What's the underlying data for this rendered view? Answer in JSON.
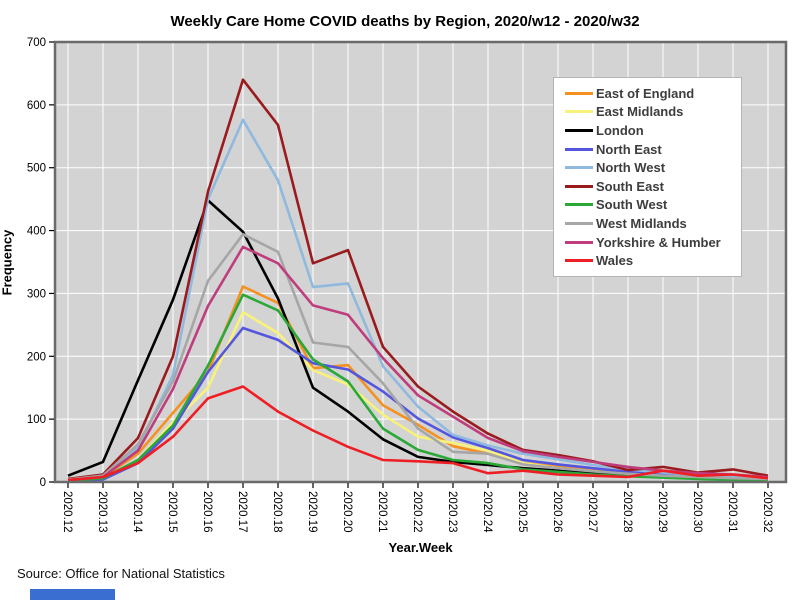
{
  "chart": {
    "title": "Weekly Care Home COVID deaths by Region, 2020/w12 - 2020/w32",
    "ylabel": "Frequency",
    "xlabel": "Year.Week",
    "source": "Source: Office for National Statistics"
  },
  "chart_data": {
    "type": "line",
    "title": "Weekly Care Home COVID deaths by Region, 2020/w12 - 2020/w32",
    "xlabel": "Year.Week",
    "ylabel": "Frequency",
    "ylim": [
      0,
      700
    ],
    "ytick_interval": 100,
    "grid": true,
    "plot_background": "#d3d3d3",
    "gridline_color": "#ffffff",
    "frame_color": "#6a6a6a",
    "legend_position": "upper right",
    "categories": [
      "2020.12",
      "2020.13",
      "2020.14",
      "2020.15",
      "2020.16",
      "2020.17",
      "2020.18",
      "2020.19",
      "2020.20",
      "2020.21",
      "2020.22",
      "2020.23",
      "2020.24",
      "2020.25",
      "2020.26",
      "2020.27",
      "2020.28",
      "2020.29",
      "2020.30",
      "2020.31",
      "2020.32"
    ],
    "series": [
      {
        "name": "East of England",
        "color": "#f59120",
        "values": [
          2,
          8,
          45,
          110,
          175,
          311,
          285,
          181,
          186,
          122,
          91,
          57,
          45,
          30,
          24,
          18,
          14,
          10,
          8,
          6,
          5
        ]
      },
      {
        "name": "East Midlands",
        "color": "#f9f27a",
        "values": [
          1,
          5,
          35,
          95,
          150,
          270,
          237,
          178,
          155,
          107,
          72,
          62,
          50,
          30,
          22,
          17,
          13,
          10,
          7,
          5,
          4
        ]
      },
      {
        "name": "London",
        "color": "#000000",
        "values": [
          10,
          32,
          162,
          290,
          448,
          398,
          292,
          150,
          112,
          68,
          40,
          32,
          27,
          22,
          18,
          14,
          10,
          8,
          6,
          5,
          4
        ]
      },
      {
        "name": "North East",
        "color": "#5456de",
        "values": [
          1,
          4,
          30,
          85,
          175,
          245,
          226,
          189,
          179,
          144,
          101,
          71,
          54,
          35,
          28,
          22,
          16,
          12,
          9,
          7,
          5
        ]
      },
      {
        "name": "North West",
        "color": "#8fb9de",
        "values": [
          4,
          10,
          55,
          170,
          450,
          576,
          480,
          310,
          316,
          184,
          120,
          75,
          58,
          45,
          36,
          27,
          20,
          15,
          11,
          9,
          6
        ]
      },
      {
        "name": "South East",
        "color": "#9a1b1e",
        "values": [
          5,
          12,
          70,
          200,
          462,
          640,
          568,
          348,
          369,
          215,
          152,
          112,
          77,
          51,
          43,
          33,
          19,
          24,
          15,
          20,
          10
        ]
      },
      {
        "name": "South West",
        "color": "#2aa838",
        "values": [
          2,
          6,
          35,
          90,
          185,
          298,
          273,
          195,
          160,
          85,
          51,
          35,
          30,
          20,
          16,
          12,
          9,
          7,
          5,
          3,
          2
        ]
      },
      {
        "name": "West Midlands",
        "color": "#a6a6a6",
        "values": [
          4,
          10,
          60,
          160,
          320,
          394,
          366,
          222,
          215,
          157,
          85,
          48,
          45,
          28,
          22,
          17,
          13,
          10,
          8,
          6,
          5
        ]
      },
      {
        "name": "Yorkshire & Humber",
        "color": "#bf3d7d",
        "values": [
          3,
          8,
          50,
          148,
          280,
          374,
          348,
          281,
          266,
          197,
          138,
          104,
          70,
          49,
          40,
          32,
          24,
          18,
          14,
          12,
          8
        ]
      },
      {
        "name": "Wales",
        "color": "#ee1f24",
        "values": [
          3,
          8,
          30,
          72,
          133,
          152,
          112,
          82,
          56,
          35,
          33,
          30,
          14,
          18,
          12,
          10,
          8,
          18,
          10,
          12,
          6
        ]
      }
    ]
  }
}
